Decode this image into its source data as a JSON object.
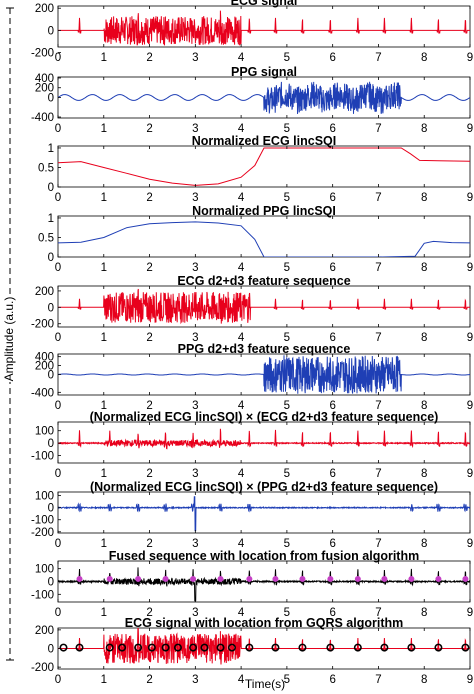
{
  "figure": {
    "ylabel": "Amplitude (a.u.)",
    "xlabel": "Time(s)"
  },
  "chart_data": [
    {
      "type": "line",
      "title": "ECG signal",
      "color": "#e8001c",
      "signal": "ecg",
      "noise_interval_s": [
        1,
        4
      ],
      "xlim": [
        0,
        9
      ],
      "ylim": [
        -150,
        220
      ],
      "yticks": [
        -200,
        0,
        200
      ],
      "xticks": [
        0,
        1,
        2,
        3,
        4,
        5,
        6,
        7,
        8,
        9
      ],
      "beat_times_s": [
        0.47,
        1.13,
        1.75,
        2.35,
        2.95,
        3.55,
        4.18,
        4.75,
        5.34,
        5.95,
        6.55,
        7.13,
        7.72,
        8.31,
        8.9
      ],
      "r_peak_amplitude": 120,
      "noise_amplitude": 130
    },
    {
      "type": "line",
      "title": "PPG signal",
      "color": "#1f3fb5",
      "signal": "ppg",
      "noise_interval_s": [
        4.5,
        7.5
      ],
      "xlim": [
        0,
        9
      ],
      "ylim": [
        -420,
        420
      ],
      "yticks": [
        -400,
        0,
        200,
        400
      ],
      "xticks": [
        0,
        1,
        2,
        3,
        4,
        5,
        6,
        7,
        8,
        9
      ],
      "baseline_amplitude": 60,
      "noise_amplitude": 280
    },
    {
      "type": "line",
      "title": "Normalized ECG lincSQI",
      "color": "#e8001c",
      "xlim": [
        0,
        9
      ],
      "ylim": [
        0,
        1.05
      ],
      "yticks": [
        0,
        0.5,
        1
      ],
      "xticks": [
        0,
        1,
        2,
        3,
        4,
        5,
        6,
        7,
        8,
        9
      ],
      "x": [
        0,
        0.5,
        1.0,
        1.5,
        2.0,
        2.5,
        3.0,
        3.5,
        4.0,
        4.3,
        4.5,
        5,
        6,
        7,
        7.5,
        7.7,
        7.9,
        8.3,
        9
      ],
      "y": [
        0.62,
        0.65,
        0.5,
        0.35,
        0.2,
        0.1,
        0.04,
        0.08,
        0.25,
        0.55,
        1.0,
        1.0,
        1.0,
        1.0,
        1.0,
        0.85,
        0.68,
        0.67,
        0.66
      ]
    },
    {
      "type": "line",
      "title": "Normalized PPG lincSQI",
      "color": "#1f3fb5",
      "xlim": [
        0,
        9
      ],
      "ylim": [
        0,
        1.05
      ],
      "yticks": [
        0,
        0.5,
        1
      ],
      "xticks": [
        0,
        1,
        2,
        3,
        4,
        5,
        6,
        7,
        8,
        9
      ],
      "x": [
        0,
        0.5,
        1.0,
        1.5,
        2.0,
        2.5,
        3.0,
        3.5,
        4.0,
        4.3,
        4.5,
        5,
        6,
        7,
        7.8,
        8.0,
        8.2,
        8.6,
        9
      ],
      "y": [
        0.36,
        0.38,
        0.5,
        0.75,
        0.85,
        0.88,
        0.9,
        0.87,
        0.8,
        0.45,
        0.0,
        0.0,
        0.0,
        0.0,
        0.02,
        0.35,
        0.4,
        0.37,
        0.36
      ]
    },
    {
      "type": "line",
      "title": "ECG d2+d3 feature sequence",
      "color": "#e8001c",
      "signal": "ecg_feature",
      "noise_interval_s": [
        1,
        4.2
      ],
      "xlim": [
        0,
        9
      ],
      "ylim": [
        -240,
        260
      ],
      "yticks": [
        -200,
        0,
        200
      ],
      "xticks": [
        0,
        1,
        2,
        3,
        4,
        5,
        6,
        7,
        8,
        9
      ],
      "beat_times_s": [
        0.47,
        1.13,
        1.75,
        2.35,
        2.95,
        3.55,
        4.18,
        4.75,
        5.34,
        5.95,
        6.55,
        7.13,
        7.72,
        8.31,
        8.9
      ],
      "r_peak_amplitude": 110,
      "noise_amplitude": 190
    },
    {
      "type": "line",
      "title": "PPG d2+d3 feature sequence",
      "color": "#1f3fb5",
      "signal": "ppg_feature",
      "noise_interval_s": [
        4.5,
        7.5
      ],
      "xlim": [
        0,
        9
      ],
      "ylim": [
        -460,
        460
      ],
      "yticks": [
        -400,
        0,
        200,
        400
      ],
      "xticks": [
        0,
        1,
        2,
        3,
        4,
        5,
        6,
        7,
        8,
        9
      ],
      "baseline_amplitude": 12,
      "noise_amplitude": 420
    },
    {
      "type": "line",
      "title": "(Normalized ECG lincSQI) × (ECG d2+d3 feature sequence)",
      "color": "#e8001c",
      "signal": "ecg_weighted",
      "xlim": [
        0,
        9
      ],
      "ylim": [
        -160,
        170
      ],
      "yticks": [
        -100,
        0,
        100
      ],
      "xticks": [
        0,
        1,
        2,
        3,
        4,
        5,
        6,
        7,
        8,
        9
      ],
      "beat_times_s": [
        0.47,
        1.13,
        1.75,
        2.35,
        2.95,
        3.55,
        4.18,
        4.75,
        5.34,
        5.95,
        6.55,
        7.13,
        7.72,
        8.31,
        8.9
      ],
      "r_peak_amplitude": 110,
      "noise_amplitude": 25
    },
    {
      "type": "line",
      "title": "(Normalized ECG lincSQI) × (PPG d2+d3 feature sequence)",
      "color": "#1f3fb5",
      "signal": "ppg_weighted",
      "xlim": [
        0,
        9
      ],
      "ylim": [
        -210,
        130
      ],
      "yticks": [
        -200,
        -100,
        0,
        100
      ],
      "xticks": [
        0,
        1,
        2,
        3,
        4,
        5,
        6,
        7,
        8,
        9
      ],
      "beat_times_s": [
        0.47,
        1.13,
        1.75,
        2.35,
        2.95,
        3.55,
        4.18,
        4.75,
        5.34,
        5.95,
        6.55,
        7.13,
        7.72,
        8.31,
        8.9
      ],
      "spike_time_s": 3.0,
      "spike_amplitude": -190
    },
    {
      "type": "line",
      "title": "Fused sequence with location from fusion algorithm",
      "color": "#000000",
      "marker_color": "#c53fc5",
      "signal": "fused",
      "xlim": [
        0,
        9
      ],
      "ylim": [
        -160,
        160
      ],
      "yticks": [
        -100,
        0,
        100
      ],
      "xticks": [
        0,
        1,
        2,
        3,
        4,
        5,
        6,
        7,
        8,
        9
      ],
      "beat_times_s": [
        0.47,
        1.13,
        1.75,
        2.35,
        2.95,
        3.55,
        4.18,
        4.75,
        5.34,
        5.95,
        6.55,
        7.13,
        7.72,
        8.31,
        8.9
      ],
      "marker_times_s": [
        0.47,
        1.13,
        1.75,
        2.35,
        2.95,
        3.55,
        4.18,
        4.75,
        5.34,
        5.95,
        6.55,
        7.13,
        7.72,
        8.31,
        8.9
      ],
      "spike_time_s": 3.0,
      "r_peak_amplitude": 100
    },
    {
      "type": "line",
      "title": "ECG signal with location from GQRS algorithm",
      "color": "#e8001c",
      "marker_color": "#000000",
      "signal": "ecg",
      "noise_interval_s": [
        1,
        4
      ],
      "xlim": [
        0,
        9
      ],
      "ylim": [
        -220,
        220
      ],
      "yticks": [
        -200,
        0,
        200
      ],
      "xticks": [
        0,
        1,
        2,
        3,
        4,
        5,
        6,
        7,
        8,
        9
      ],
      "beat_times_s": [
        0.47,
        1.13,
        1.75,
        2.35,
        2.95,
        3.55,
        4.18,
        4.75,
        5.34,
        5.95,
        6.55,
        7.13,
        7.72,
        8.31,
        8.9
      ],
      "marker_times_s": [
        0.12,
        0.47,
        1.13,
        1.4,
        1.75,
        2.05,
        2.35,
        2.62,
        2.95,
        3.2,
        3.55,
        3.8,
        4.18,
        4.75,
        5.34,
        5.95,
        6.55,
        7.13,
        7.72,
        8.31,
        8.9
      ],
      "r_peak_amplitude": 120,
      "noise_amplitude": 160
    }
  ]
}
